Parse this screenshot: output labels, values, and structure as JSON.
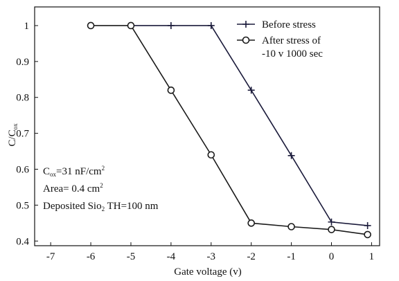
{
  "chart_data": {
    "type": "line",
    "x_label": "Gate voltage (v)",
    "y_label": [
      "C/C",
      "ox"
    ],
    "xlim": [
      -7.4,
      1.2
    ],
    "xticks": [
      -7,
      -6,
      -5,
      -4,
      -3,
      -2,
      -1,
      0,
      1
    ],
    "ylim": [
      0.387,
      1.052
    ],
    "yticks": [
      0.4,
      0.5,
      0.6,
      0.7,
      0.8,
      0.9,
      1
    ],
    "series": [
      {
        "name": "Before stress",
        "color": "#1a1a3a",
        "marker": "plus",
        "x": [
          -5,
          -4,
          -3,
          -2,
          -1,
          0,
          0.9
        ],
        "values": [
          1,
          1,
          1,
          0.82,
          0.638,
          0.453,
          0.443
        ]
      },
      {
        "name": "After stress of -10 v 1000 sec",
        "color": "#1a1a1a",
        "marker": "circle",
        "x": [
          -6,
          -5,
          -4,
          -3,
          -2,
          -1,
          0,
          0.9
        ],
        "values": [
          1,
          1,
          0.82,
          0.64,
          0.45,
          0.44,
          0.432,
          0.418
        ]
      }
    ],
    "annotations": [
      [
        "C",
        "ox",
        "=31 nF/cm",
        "2"
      ],
      [
        "Area= 0.4 cm",
        "2"
      ],
      [
        "Deposited Sio",
        "2",
        " TH=100 nm"
      ]
    ]
  }
}
